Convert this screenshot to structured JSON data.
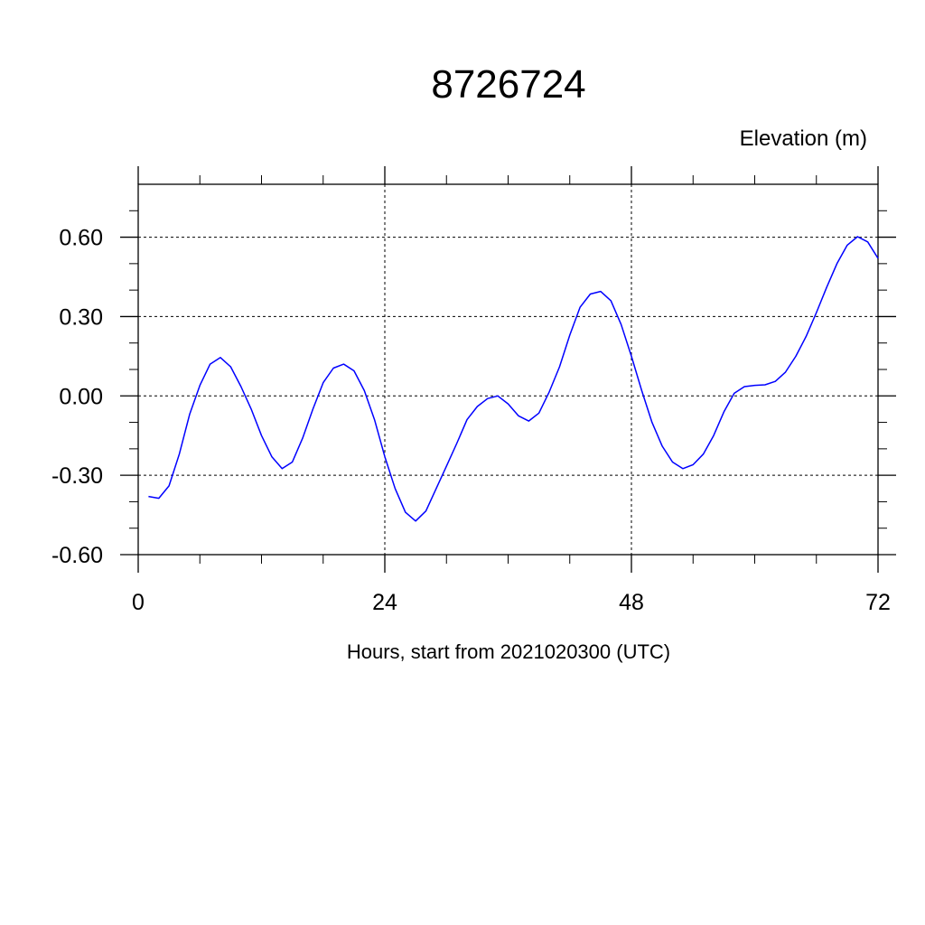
{
  "chart_data": {
    "type": "line",
    "title": "8726724",
    "ylabel": "Elevation (m)",
    "xlabel": "Hours, start from 2021020300 (UTC)",
    "xlim": [
      0,
      72
    ],
    "ylim": [
      -0.6,
      0.8
    ],
    "x_ticks": [
      0,
      24,
      48,
      72
    ],
    "x_tick_labels": [
      "0",
      "24",
      "48",
      "72"
    ],
    "y_ticks": [
      -0.6,
      -0.3,
      0.0,
      0.3,
      0.6
    ],
    "y_tick_labels": [
      "-0.60",
      "-0.30",
      "0.00",
      "0.30",
      "0.60"
    ],
    "grid": true,
    "line_color": "#0000ff",
    "series": [
      {
        "x": [
          1,
          2,
          3,
          4,
          5,
          6,
          7,
          8,
          9,
          10,
          11,
          12,
          13,
          14,
          15,
          16,
          17,
          18,
          19,
          20,
          21,
          22,
          23,
          24,
          25,
          26,
          27,
          28,
          29,
          30,
          31,
          32,
          33,
          34,
          35,
          36,
          37,
          38,
          39,
          40,
          41,
          42,
          43,
          44,
          45,
          46,
          47,
          48,
          49,
          50,
          51,
          52,
          53,
          54,
          55,
          56,
          57,
          58,
          59,
          60,
          61,
          62,
          63,
          64,
          65,
          66,
          67,
          68,
          69,
          70,
          71,
          72
        ],
        "values": [
          -0.38,
          -0.387,
          -0.34,
          -0.22,
          -0.07,
          0.04,
          0.12,
          0.145,
          0.11,
          0.035,
          -0.05,
          -0.15,
          -0.23,
          -0.275,
          -0.25,
          -0.16,
          -0.05,
          0.05,
          0.105,
          0.12,
          0.095,
          0.02,
          -0.09,
          -0.23,
          -0.35,
          -0.44,
          -0.473,
          -0.435,
          -0.35,
          -0.265,
          -0.18,
          -0.09,
          -0.04,
          -0.01,
          0.0,
          -0.03,
          -0.075,
          -0.095,
          -0.065,
          0.015,
          0.11,
          0.23,
          0.335,
          0.385,
          0.395,
          0.36,
          0.27,
          0.15,
          0.02,
          -0.1,
          -0.19,
          -0.25,
          -0.275,
          -0.26,
          -0.22,
          -0.15,
          -0.06,
          0.01,
          0.035,
          0.04,
          0.042,
          0.055,
          0.09,
          0.15,
          0.225,
          0.315,
          0.41,
          0.5,
          0.57,
          0.602,
          0.582,
          0.52
        ]
      }
    ]
  }
}
